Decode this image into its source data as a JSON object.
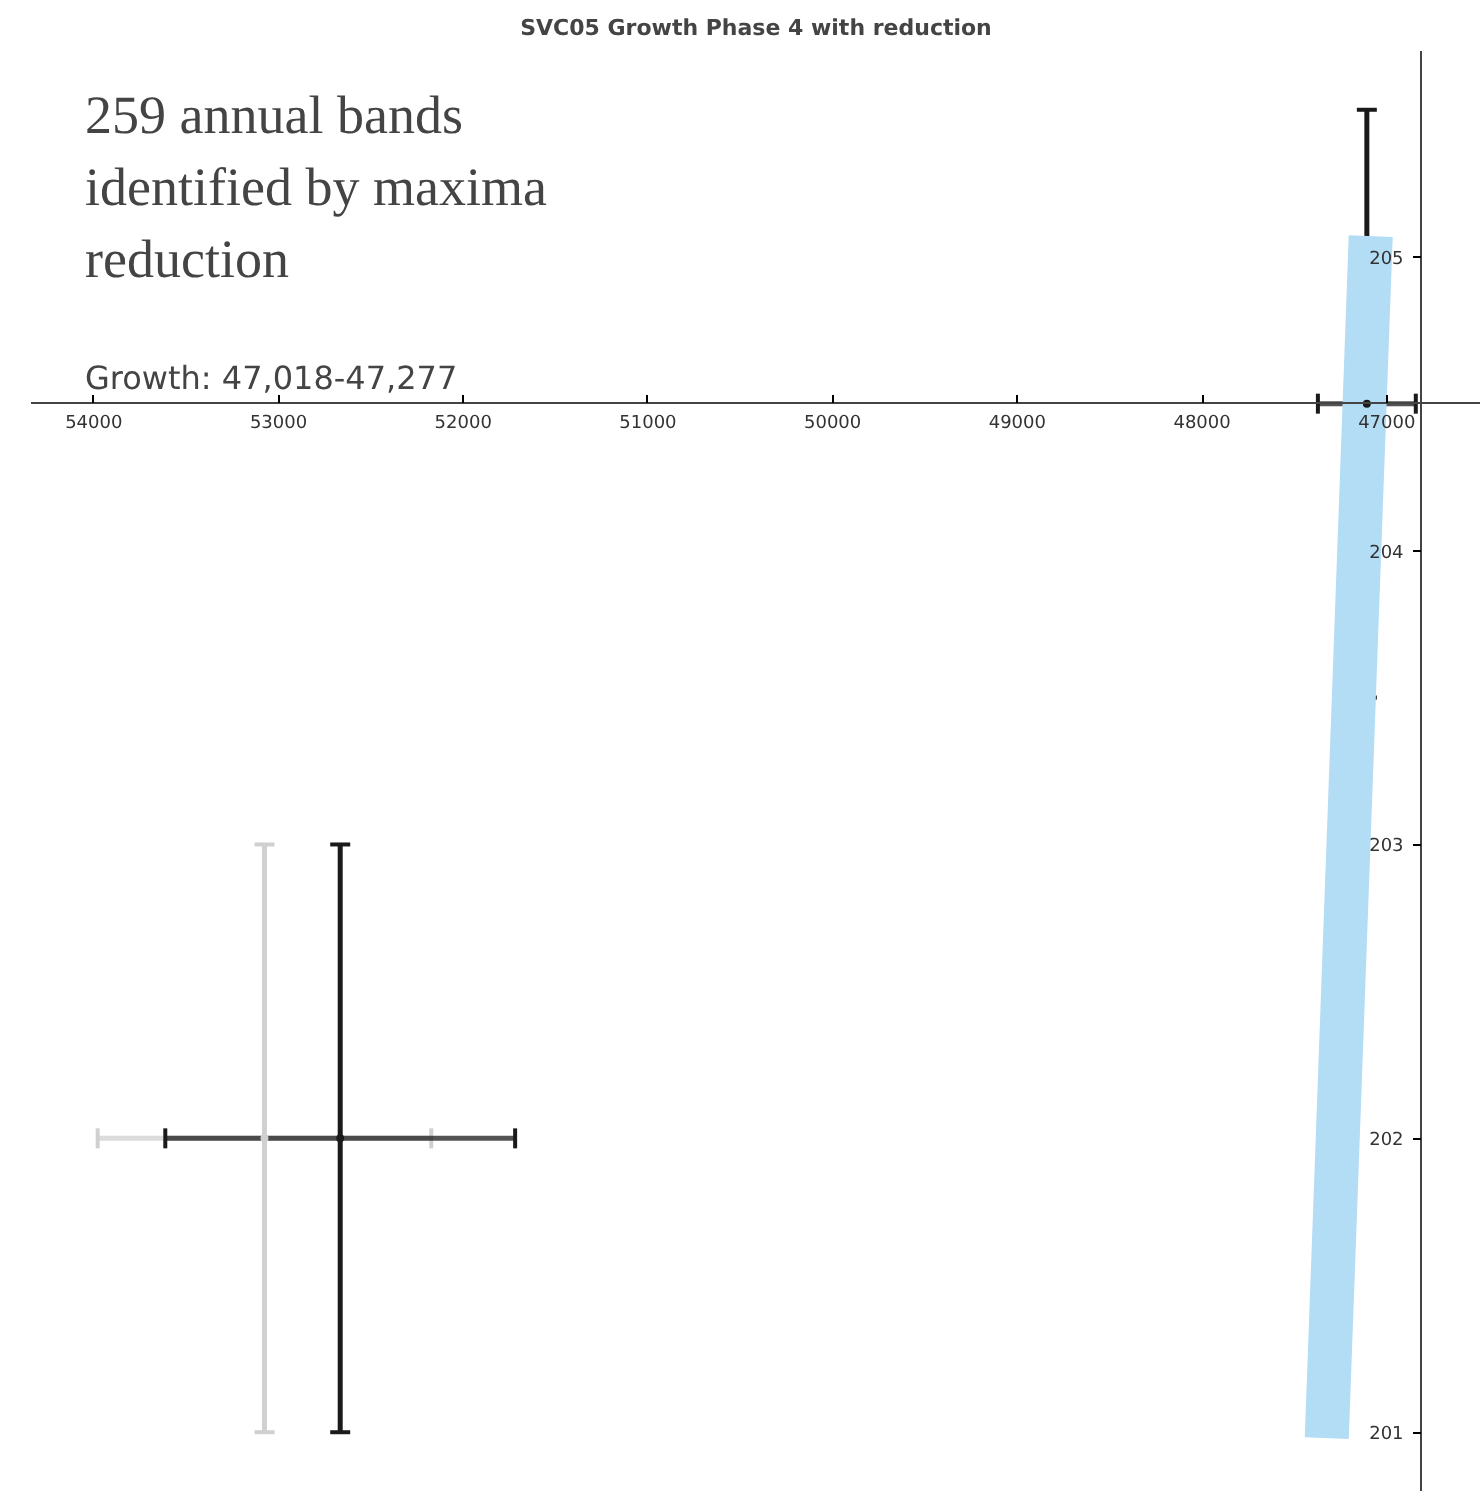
{
  "chart_data": {
    "type": "scatter",
    "title": "SVC05 Growth Phase 4 with reduction",
    "annotations": [
      "259 annual bands\nidentified by maxima\nreduction",
      "Growth: 47,018-47,277"
    ],
    "series": [
      {
        "type": "line",
        "color": "#b3dcf5",
        "x": [
          47087,
          47325
        ],
        "values": [
          205.07,
          200.98
        ]
      },
      {
        "color": "#d0d0d0",
        "x": [
          53076
        ],
        "values": [
          202
        ],
        "errors": [
          1
        ],
        "xerrors": [
          903
        ]
      },
      {
        "color": "#1a1a1a",
        "x": [
          52666
        ],
        "values": [
          202
        ],
        "errors": [
          1
        ],
        "xerrors": [
          947
        ]
      },
      {
        "color": "#1a1a1a",
        "x": [
          47108
        ],
        "values": [
          204.5
        ],
        "errors": [
          1
        ],
        "xerrors": [
          265
        ]
      }
    ],
    "xlim": [
      54340,
      46490
    ],
    "ylim": [
      200.8,
      205.7
    ],
    "xticks": [
      54000,
      53000,
      52000,
      51000,
      50000,
      49000,
      48000,
      47000
    ],
    "yticks": [
      201,
      202,
      203,
      204,
      205
    ],
    "grid": false,
    "marker": "none"
  }
}
